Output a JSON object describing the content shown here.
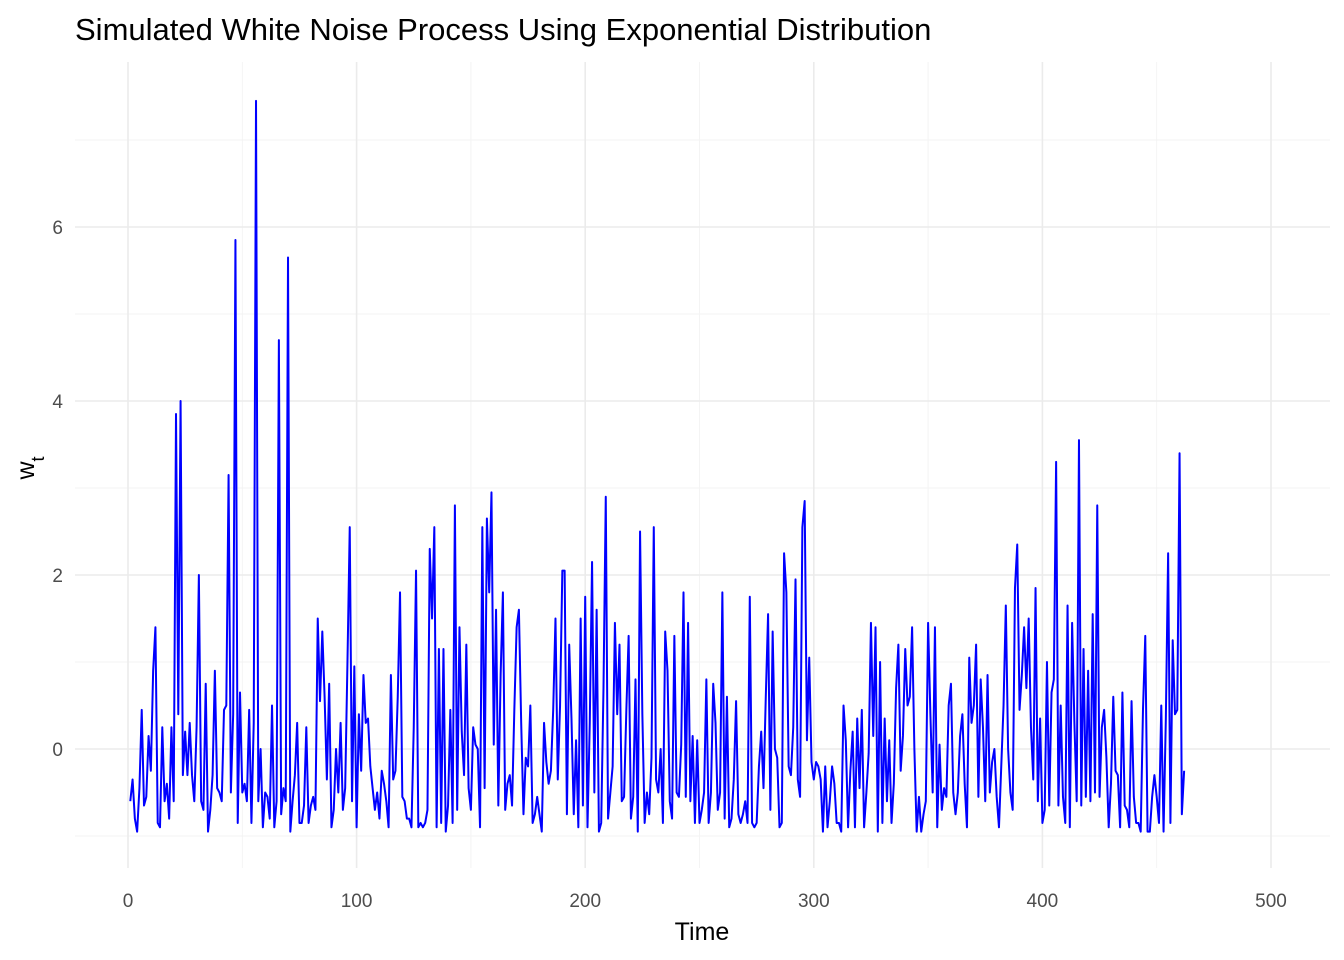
{
  "chart_data": {
    "type": "line",
    "title": "Simulated White Noise Process Using Exponential Distribution",
    "xlabel": "Time",
    "ylabel": "w",
    "ylabel_subscript": "t",
    "x_ticks": [
      0,
      100,
      200,
      300,
      400,
      500
    ],
    "y_ticks": [
      0,
      2,
      4,
      6
    ],
    "xlim": [
      -21,
      521
    ],
    "ylim": [
      -1.0,
      7.5
    ],
    "grid": true,
    "legend": "none",
    "line_color": "#0000ff",
    "series": [
      {
        "x_start": 1,
        "x_step": 1,
        "values": [
          -0.6,
          -0.35,
          -0.8,
          -0.95,
          -0.45,
          0.45,
          -0.65,
          -0.55,
          0.15,
          -0.25,
          0.9,
          1.4,
          -0.85,
          -0.9,
          0.25,
          -0.6,
          -0.4,
          -0.8,
          0.25,
          -0.6,
          3.85,
          0.4,
          4.0,
          -0.3,
          0.2,
          -0.3,
          0.3,
          -0.3,
          -0.6,
          0.25,
          2.0,
          -0.6,
          -0.7,
          0.75,
          -0.95,
          -0.7,
          -0.3,
          0.9,
          -0.45,
          -0.5,
          -0.6,
          0.45,
          0.5,
          3.15,
          -0.5,
          0.4,
          5.85,
          -0.85,
          0.65,
          -0.5,
          -0.4,
          -0.6,
          0.45,
          -0.85,
          0.3,
          7.45,
          -0.6,
          0.0,
          -0.9,
          -0.5,
          -0.55,
          -0.8,
          0.5,
          -0.9,
          -0.6,
          4.7,
          -0.75,
          -0.45,
          -0.6,
          5.65,
          -0.95,
          -0.6,
          -0.3,
          0.3,
          -0.85,
          -0.85,
          -0.65,
          0.25,
          -0.85,
          -0.65,
          -0.55,
          -0.7,
          1.5,
          0.55,
          1.35,
          0.6,
          -0.35,
          0.75,
          -0.9,
          -0.7,
          0.0,
          -0.5,
          0.3,
          -0.7,
          -0.45,
          1.0,
          2.55,
          -0.6,
          0.95,
          -0.9,
          0.4,
          -0.25,
          0.85,
          0.3,
          0.35,
          -0.2,
          -0.45,
          -0.7,
          -0.5,
          -0.8,
          -0.25,
          -0.4,
          -0.6,
          -0.9,
          0.85,
          -0.35,
          -0.25,
          0.6,
          1.8,
          -0.55,
          -0.6,
          -0.8,
          -0.8,
          -0.9,
          0.25,
          2.05,
          -0.9,
          -0.85,
          -0.9,
          -0.85,
          -0.7,
          2.3,
          1.5,
          2.55,
          -0.9,
          1.15,
          -0.85,
          1.15,
          -0.95,
          -0.65,
          0.45,
          -0.85,
          2.8,
          -0.7,
          1.4,
          0.2,
          -0.3,
          1.2,
          -0.45,
          -0.7,
          0.25,
          0.05,
          0.0,
          -0.9,
          2.55,
          -0.45,
          2.65,
          1.8,
          2.95,
          0.05,
          1.6,
          -0.65,
          0.85,
          1.8,
          -0.7,
          -0.4,
          -0.3,
          -0.65,
          0.45,
          1.4,
          1.6,
          0.3,
          -0.75,
          -0.1,
          -0.2,
          0.5,
          -0.85,
          -0.75,
          -0.55,
          -0.75,
          -0.95,
          0.3,
          -0.15,
          -0.4,
          -0.25,
          0.45,
          1.5,
          -0.35,
          0.5,
          2.05,
          2.05,
          -0.75,
          1.2,
          0.35,
          -0.75,
          0.1,
          -0.9,
          1.5,
          -0.65,
          1.75,
          -0.9,
          0.3,
          2.15,
          -0.5,
          1.6,
          -0.95,
          -0.85,
          0.7,
          2.9,
          -0.8,
          -0.5,
          -0.2,
          1.45,
          0.4,
          1.2,
          -0.6,
          -0.55,
          0.45,
          1.3,
          -0.8,
          -0.55,
          0.8,
          -0.95,
          2.5,
          0.4,
          -0.85,
          -0.5,
          -0.75,
          -0.1,
          2.55,
          -0.35,
          -0.5,
          0.0,
          -0.85,
          1.35,
          0.9,
          -0.6,
          -0.8,
          1.3,
          -0.5,
          -0.55,
          0.05,
          1.8,
          -0.55,
          1.45,
          -0.6,
          0.15,
          -0.85,
          0.1,
          -0.85,
          -0.7,
          -0.5,
          0.8,
          -0.85,
          -0.5,
          0.75,
          0.3,
          -0.7,
          -0.5,
          1.8,
          -0.8,
          0.6,
          -0.9,
          -0.8,
          -0.35,
          0.55,
          -0.75,
          -0.85,
          -0.75,
          -0.6,
          -0.85,
          1.75,
          -0.85,
          -0.9,
          -0.85,
          -0.2,
          0.2,
          -0.45,
          0.6,
          1.55,
          -0.7,
          1.35,
          0.0,
          -0.1,
          -0.9,
          -0.85,
          2.25,
          1.8,
          -0.2,
          -0.3,
          0.25,
          1.95,
          -0.35,
          -0.55,
          2.55,
          2.85,
          0.1,
          1.05,
          -0.15,
          -0.35,
          -0.15,
          -0.2,
          -0.35,
          -0.95,
          -0.2,
          -0.9,
          -0.6,
          -0.2,
          -0.4,
          -0.85,
          -0.85,
          -0.95,
          0.5,
          0.1,
          -0.9,
          -0.25,
          0.2,
          -0.9,
          0.35,
          -0.45,
          0.45,
          -0.9,
          -0.5,
          -0.05,
          1.45,
          0.15,
          1.4,
          -0.95,
          1.0,
          -0.85,
          0.35,
          -0.6,
          0.1,
          -0.85,
          -0.4,
          0.7,
          1.2,
          -0.25,
          0.15,
          1.15,
          0.5,
          0.6,
          1.4,
          0.0,
          -0.95,
          -0.55,
          -0.95,
          -0.75,
          -0.6,
          1.45,
          0.4,
          -0.5,
          1.4,
          -0.9,
          0.05,
          -0.7,
          -0.45,
          -0.55,
          0.5,
          0.75,
          -0.5,
          -0.75,
          -0.5,
          0.15,
          0.4,
          -0.4,
          -0.9,
          1.05,
          0.3,
          0.5,
          1.2,
          -0.55,
          0.8,
          0.25,
          -0.6,
          0.85,
          -0.5,
          -0.15,
          0.0,
          -0.55,
          -0.9,
          -0.2,
          0.5,
          1.65,
          0.0,
          -0.5,
          -0.7,
          1.85,
          2.35,
          0.45,
          0.85,
          1.4,
          0.7,
          1.5,
          0.25,
          -0.35,
          1.85,
          -0.6,
          0.35,
          -0.85,
          -0.7,
          1.0,
          -0.65,
          0.65,
          0.8,
          3.3,
          -0.65,
          0.5,
          -0.55,
          -0.85,
          1.65,
          -0.9,
          1.45,
          0.3,
          -0.6,
          3.55,
          -0.65,
          1.15,
          -0.55,
          0.9,
          -0.6,
          1.55,
          -0.5,
          2.8,
          -0.55,
          0.25,
          0.45,
          -0.1,
          -0.9,
          -0.4,
          0.6,
          -0.25,
          -0.3,
          -0.9,
          0.65,
          -0.65,
          -0.7,
          -0.9,
          0.55,
          -0.55,
          -0.85,
          -0.85,
          -0.95,
          0.45,
          1.3,
          -0.95,
          -0.95,
          -0.55,
          -0.3,
          -0.55,
          -0.85,
          0.5,
          -0.95,
          0.35,
          2.25,
          -0.85,
          1.25,
          0.4,
          0.45,
          3.4,
          -0.75,
          -0.25
        ]
      }
    ]
  }
}
